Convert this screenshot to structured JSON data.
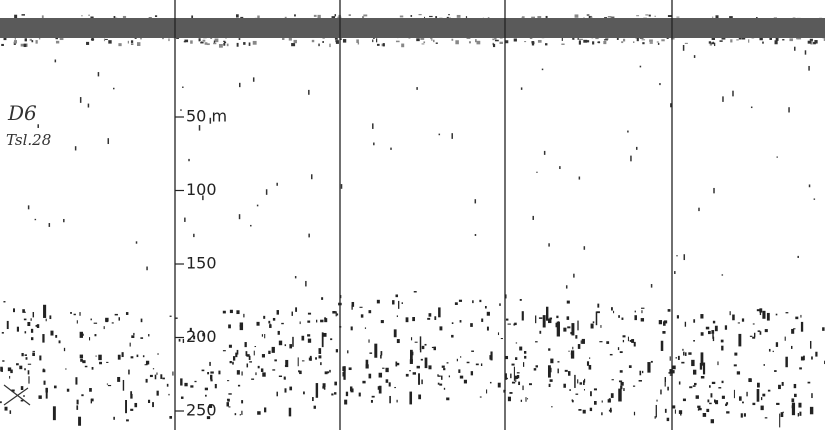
{
  "annotations": {
    "station": "D6",
    "note": "Tsl.28"
  },
  "depth_scale": {
    "labels": [
      "50 m",
      "100",
      "150",
      "200",
      "250"
    ]
  }
}
